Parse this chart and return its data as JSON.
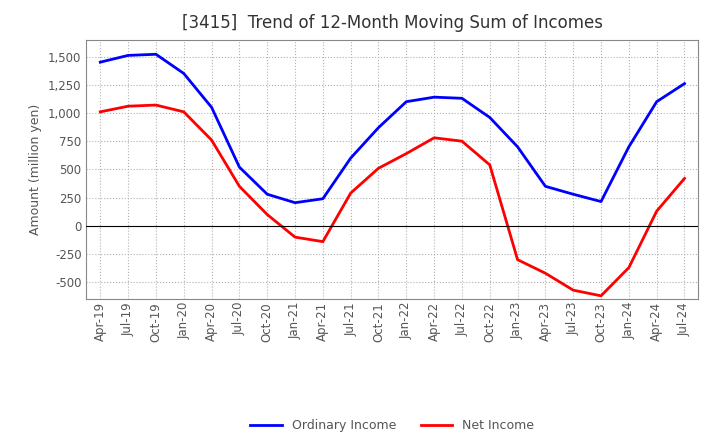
{
  "title": "[3415]  Trend of 12-Month Moving Sum of Incomes",
  "ylabel": "Amount (million yen)",
  "background_color": "#ffffff",
  "grid_color": "#aaaaaa",
  "ordinary_income_color": "#0000ff",
  "net_income_color": "#ff0000",
  "line_width": 2.0,
  "x_labels": [
    "Apr-19",
    "Jul-19",
    "Oct-19",
    "Jan-20",
    "Apr-20",
    "Jul-20",
    "Oct-20",
    "Jan-21",
    "Apr-21",
    "Jul-21",
    "Oct-21",
    "Jan-22",
    "Apr-22",
    "Jul-22",
    "Oct-22",
    "Jan-23",
    "Apr-23",
    "Jul-23",
    "Oct-23",
    "Jan-24",
    "Apr-24",
    "Jul-24"
  ],
  "ordinary_income": [
    1450,
    1510,
    1520,
    1350,
    1050,
    520,
    280,
    205,
    240,
    600,
    870,
    1100,
    1140,
    1130,
    960,
    700,
    350,
    280,
    215,
    700,
    1100,
    1260
  ],
  "net_income": [
    1010,
    1060,
    1070,
    1010,
    760,
    350,
    100,
    -100,
    -140,
    290,
    510,
    640,
    780,
    750,
    540,
    -300,
    -420,
    -570,
    -620,
    -370,
    130,
    420
  ],
  "ylim": [
    -650,
    1650
  ],
  "yticks": [
    -500,
    -250,
    0,
    250,
    500,
    750,
    1000,
    1250,
    1500
  ],
  "legend_labels": [
    "Ordinary Income",
    "Net Income"
  ],
  "title_fontsize": 12,
  "title_color": "#333333",
  "axis_fontsize": 9,
  "tick_fontsize": 8.5,
  "tick_color": "#555555",
  "legend_fontsize": 9
}
